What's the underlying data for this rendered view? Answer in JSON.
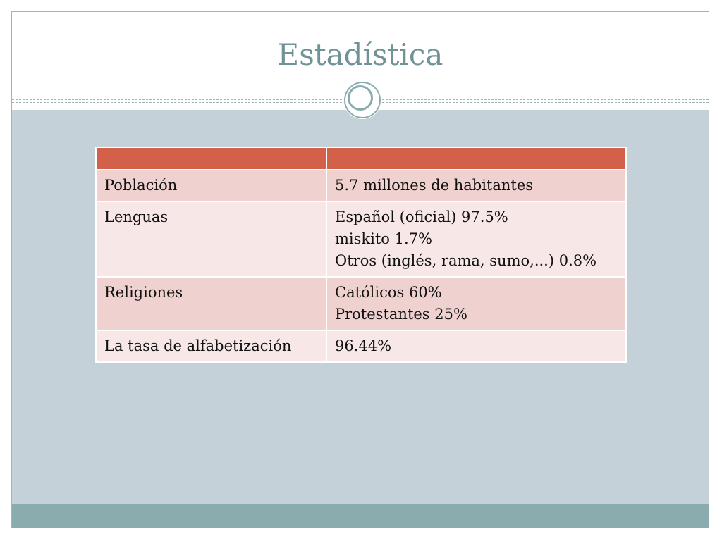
{
  "slide": {
    "title": "Estadística"
  },
  "table": {
    "rows": [
      {
        "label": "Población",
        "values": [
          "5.7 millones de habitantes"
        ]
      },
      {
        "label": "Lenguas",
        "values": [
          "Español (oficial) 97.5%",
          "miskito 1.7%",
          "Otros (inglés, rama, sumo,...) 0.8%"
        ]
      },
      {
        "label": "Religiones",
        "values": [
          "Católicos 60%",
          "Protestantes 25%"
        ]
      },
      {
        "label": "La tasa de alfabetización",
        "values": [
          "96.44%"
        ]
      }
    ]
  },
  "colors": {
    "title": "#6f9396",
    "header": "#d3614a",
    "row_odd": "#efd1cf",
    "row_even": "#f7e8e7",
    "content_bg": "#c5d1d8",
    "footer": "#8aacae"
  }
}
